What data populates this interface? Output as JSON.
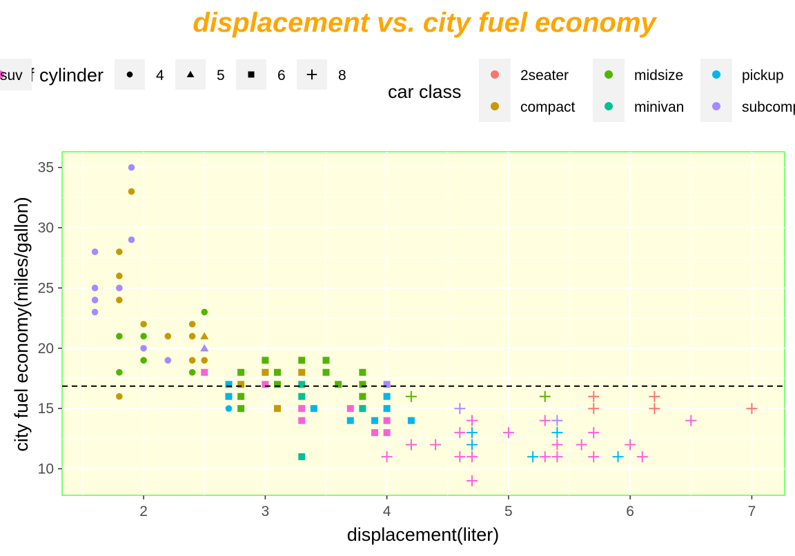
{
  "chart_data": {
    "type": "scatter",
    "title": "displacement vs. city fuel economy",
    "xlabel": "displacement(liter)",
    "ylabel": "city fuel economy(miles/gallon)",
    "xlim": [
      1.33,
      7.27
    ],
    "ylim": [
      7.8,
      36.3
    ],
    "x_ticks": [
      2,
      3,
      4,
      5,
      6,
      7
    ],
    "y_ticks": [
      10,
      15,
      20,
      25,
      30,
      35
    ],
    "grid": true,
    "legend_position": "top",
    "reference_line": {
      "y": 16.86,
      "style": "dashed"
    },
    "shape_legend": {
      "title": "number of cylinder",
      "items": [
        {
          "label": "4",
          "shape": "circle"
        },
        {
          "label": "5",
          "shape": "triangle"
        },
        {
          "label": "6",
          "shape": "square"
        },
        {
          "label": "8",
          "shape": "plus"
        }
      ]
    },
    "color_legend": {
      "title": "car class",
      "items": [
        {
          "label": "2seater",
          "color": "#F8766D"
        },
        {
          "label": "compact",
          "color": "#C49A00"
        },
        {
          "label": "midsize",
          "color": "#53B400"
        },
        {
          "label": "minivan",
          "color": "#00C094"
        },
        {
          "label": "pickup",
          "color": "#00B6EB"
        },
        {
          "label": "subcompact",
          "color": "#A58AFF"
        },
        {
          "label": "suv",
          "color": "#FB61D7"
        }
      ]
    },
    "points": [
      [
        1.6,
        28,
        4,
        "subcompact"
      ],
      [
        1.6,
        25,
        4,
        "subcompact"
      ],
      [
        1.6,
        24,
        4,
        "subcompact"
      ],
      [
        1.6,
        23,
        4,
        "subcompact"
      ],
      [
        1.8,
        28,
        4,
        "compact"
      ],
      [
        1.8,
        26,
        4,
        "compact"
      ],
      [
        1.8,
        25,
        4,
        "subcompact"
      ],
      [
        1.8,
        24,
        4,
        "compact"
      ],
      [
        1.8,
        21,
        4,
        "midsize"
      ],
      [
        1.8,
        18,
        4,
        "midsize"
      ],
      [
        1.8,
        16,
        4,
        "compact"
      ],
      [
        1.9,
        35,
        4,
        "subcompact"
      ],
      [
        1.9,
        33,
        4,
        "compact"
      ],
      [
        1.9,
        29,
        4,
        "subcompact"
      ],
      [
        2.0,
        22,
        4,
        "compact"
      ],
      [
        2.0,
        21,
        4,
        "midsize"
      ],
      [
        2.0,
        20,
        4,
        "subcompact"
      ],
      [
        2.0,
        19,
        4,
        "midsize"
      ],
      [
        2.2,
        21,
        4,
        "compact"
      ],
      [
        2.2,
        19,
        4,
        "subcompact"
      ],
      [
        2.4,
        22,
        4,
        "compact"
      ],
      [
        2.4,
        21,
        4,
        "compact"
      ],
      [
        2.4,
        19,
        4,
        "compact"
      ],
      [
        2.4,
        18,
        4,
        "midsize"
      ],
      [
        2.5,
        23,
        4,
        "midsize"
      ],
      [
        2.5,
        21,
        5,
        "compact"
      ],
      [
        2.5,
        20,
        5,
        "subcompact"
      ],
      [
        2.5,
        19,
        4,
        "compact"
      ],
      [
        2.5,
        18,
        4,
        "compact"
      ],
      [
        2.5,
        18,
        6,
        "suv"
      ],
      [
        2.7,
        17,
        6,
        "pickup"
      ],
      [
        2.7,
        16,
        6,
        "pickup"
      ],
      [
        2.7,
        15,
        4,
        "pickup"
      ],
      [
        2.8,
        18,
        6,
        "midsize"
      ],
      [
        2.8,
        17,
        6,
        "compact"
      ],
      [
        2.8,
        16,
        6,
        "midsize"
      ],
      [
        2.8,
        15,
        6,
        "midsize"
      ],
      [
        3.0,
        19,
        6,
        "midsize"
      ],
      [
        3.0,
        18,
        6,
        "compact"
      ],
      [
        3.0,
        17,
        6,
        "suv"
      ],
      [
        3.1,
        18,
        6,
        "midsize"
      ],
      [
        3.1,
        17,
        6,
        "midsize"
      ],
      [
        3.1,
        15,
        6,
        "compact"
      ],
      [
        3.3,
        19,
        6,
        "midsize"
      ],
      [
        3.3,
        18,
        6,
        "compact"
      ],
      [
        3.3,
        17,
        6,
        "minivan"
      ],
      [
        3.3,
        16,
        6,
        "minivan"
      ],
      [
        3.3,
        15,
        6,
        "suv"
      ],
      [
        3.3,
        14,
        6,
        "suv"
      ],
      [
        3.3,
        11,
        6,
        "minivan"
      ],
      [
        3.4,
        15,
        6,
        "pickup"
      ],
      [
        3.5,
        19,
        6,
        "midsize"
      ],
      [
        3.5,
        18,
        6,
        "midsize"
      ],
      [
        3.6,
        17,
        6,
        "midsize"
      ],
      [
        3.7,
        15,
        6,
        "suv"
      ],
      [
        3.7,
        14,
        6,
        "pickup"
      ],
      [
        3.8,
        18,
        6,
        "midsize"
      ],
      [
        3.8,
        17,
        6,
        "midsize"
      ],
      [
        3.8,
        16,
        6,
        "midsize"
      ],
      [
        3.8,
        15,
        6,
        "minivan"
      ],
      [
        3.9,
        14,
        6,
        "pickup"
      ],
      [
        3.9,
        13,
        6,
        "suv"
      ],
      [
        4.0,
        17,
        6,
        "subcompact"
      ],
      [
        4.0,
        16,
        6,
        "pickup"
      ],
      [
        4.0,
        15,
        6,
        "pickup"
      ],
      [
        4.0,
        14,
        6,
        "suv"
      ],
      [
        4.0,
        13,
        6,
        "suv"
      ],
      [
        4.0,
        11,
        8,
        "suv"
      ],
      [
        4.2,
        16,
        8,
        "midsize"
      ],
      [
        4.2,
        14,
        6,
        "pickup"
      ],
      [
        4.2,
        12,
        8,
        "suv"
      ],
      [
        4.4,
        12,
        8,
        "suv"
      ],
      [
        4.6,
        15,
        8,
        "subcompact"
      ],
      [
        4.6,
        13,
        8,
        "suv"
      ],
      [
        4.6,
        11,
        8,
        "suv"
      ],
      [
        4.7,
        14,
        8,
        "suv"
      ],
      [
        4.7,
        13,
        8,
        "pickup"
      ],
      [
        4.7,
        12,
        8,
        "pickup"
      ],
      [
        4.7,
        11,
        8,
        "suv"
      ],
      [
        4.7,
        9,
        8,
        "suv"
      ],
      [
        5.0,
        13,
        8,
        "suv"
      ],
      [
        5.2,
        11,
        8,
        "pickup"
      ],
      [
        5.3,
        16,
        8,
        "midsize"
      ],
      [
        5.3,
        14,
        8,
        "suv"
      ],
      [
        5.3,
        11,
        8,
        "suv"
      ],
      [
        5.4,
        14,
        8,
        "subcompact"
      ],
      [
        5.4,
        13,
        8,
        "pickup"
      ],
      [
        5.4,
        12,
        8,
        "suv"
      ],
      [
        5.4,
        11,
        8,
        "suv"
      ],
      [
        5.6,
        12,
        8,
        "suv"
      ],
      [
        5.7,
        16,
        8,
        "2seater"
      ],
      [
        5.7,
        15,
        8,
        "2seater"
      ],
      [
        5.7,
        13,
        8,
        "suv"
      ],
      [
        5.7,
        11,
        8,
        "suv"
      ],
      [
        5.9,
        11,
        8,
        "pickup"
      ],
      [
        6.0,
        12,
        8,
        "suv"
      ],
      [
        6.1,
        11,
        8,
        "suv"
      ],
      [
        6.2,
        16,
        8,
        "2seater"
      ],
      [
        6.2,
        15,
        8,
        "2seater"
      ],
      [
        6.5,
        14,
        8,
        "suv"
      ],
      [
        7.0,
        15,
        8,
        "2seater"
      ]
    ]
  }
}
